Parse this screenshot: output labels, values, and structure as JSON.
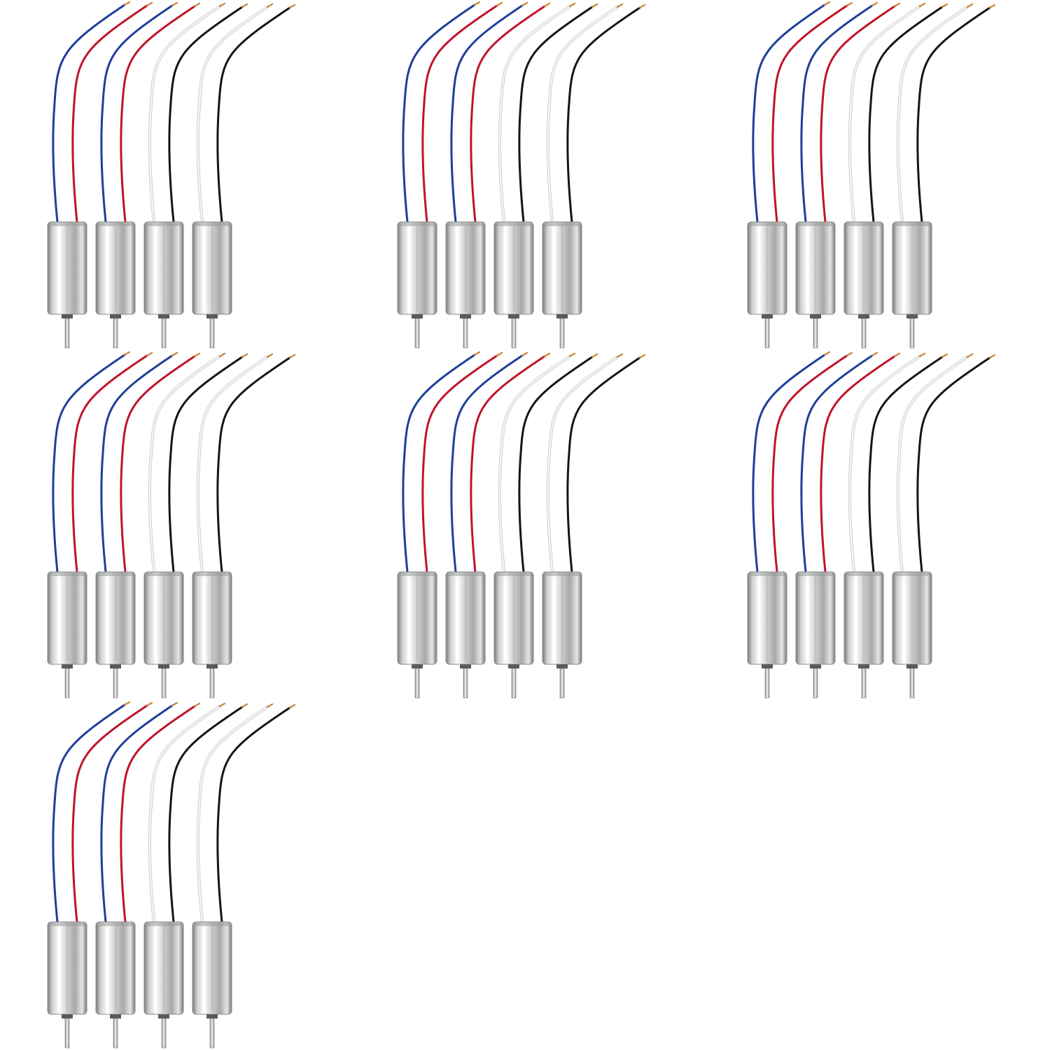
{
  "scene": {
    "background": "#ffffff",
    "motor_sets": [
      {
        "motors": [
          {
            "wires": [
              "blue",
              "red"
            ]
          },
          {
            "wires": [
              "blue",
              "red"
            ]
          },
          {
            "wires": [
              "white",
              "black"
            ]
          },
          {
            "wires": [
              "white",
              "black"
            ]
          }
        ]
      },
      {
        "motors": [
          {
            "wires": [
              "blue",
              "red"
            ]
          },
          {
            "wires": [
              "blue",
              "red"
            ]
          },
          {
            "wires": [
              "white",
              "black"
            ]
          },
          {
            "wires": [
              "white",
              "black"
            ]
          }
        ]
      },
      {
        "motors": [
          {
            "wires": [
              "blue",
              "red"
            ]
          },
          {
            "wires": [
              "blue",
              "red"
            ]
          },
          {
            "wires": [
              "white",
              "black"
            ]
          },
          {
            "wires": [
              "white",
              "black"
            ]
          }
        ]
      },
      {
        "motors": [
          {
            "wires": [
              "blue",
              "red"
            ]
          },
          {
            "wires": [
              "blue",
              "red"
            ]
          },
          {
            "wires": [
              "white",
              "black"
            ]
          },
          {
            "wires": [
              "white",
              "black"
            ]
          }
        ]
      },
      {
        "motors": [
          {
            "wires": [
              "blue",
              "red"
            ]
          },
          {
            "wires": [
              "blue",
              "red"
            ]
          },
          {
            "wires": [
              "white",
              "black"
            ]
          },
          {
            "wires": [
              "white",
              "black"
            ]
          }
        ]
      },
      {
        "motors": [
          {
            "wires": [
              "blue",
              "red"
            ]
          },
          {
            "wires": [
              "blue",
              "red"
            ]
          },
          {
            "wires": [
              "white",
              "black"
            ]
          },
          {
            "wires": [
              "white",
              "black"
            ]
          }
        ]
      },
      {
        "motors": [
          {
            "wires": [
              "blue",
              "red"
            ]
          },
          {
            "wires": [
              "blue",
              "red"
            ]
          },
          {
            "wires": [
              "white",
              "black"
            ]
          },
          {
            "wires": [
              "white",
              "black"
            ]
          }
        ]
      }
    ],
    "colors": {
      "blue": "#1f3f9a",
      "red": "#c0142a",
      "white": "#f4f4f4",
      "black": "#151515",
      "copper": "#c98a3e",
      "metal_light": "#f2f2f2",
      "metal_mid": "#b9b9b9",
      "metal_dark": "#6e6e6e"
    }
  }
}
